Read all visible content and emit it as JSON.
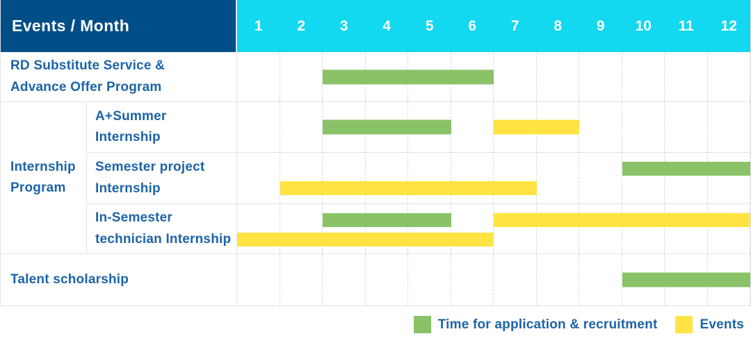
{
  "header": {
    "title": "Events / Month",
    "months": [
      "1",
      "2",
      "3",
      "4",
      "5",
      "6",
      "7",
      "8",
      "9",
      "10",
      "11",
      "12"
    ]
  },
  "colors": {
    "header_navy": "#004E88",
    "header_cyan": "#12D8F0",
    "recruitment_green": "#8AC367",
    "events_yellow": "#FFE443",
    "label_blue": "#1C64A8"
  },
  "group_label": [
    "Internship",
    "Program"
  ],
  "rows": [
    {
      "id": "rd-substitute-advance-offer",
      "label": [
        "RD Substitute Service &",
        "Advance Offer Program"
      ],
      "bars": [
        {
          "type": "recruitment",
          "start": 3,
          "end": 6,
          "line": 0
        }
      ]
    },
    {
      "id": "a-plus-summer-internship",
      "label": [
        "A+Summer",
        "Internship"
      ],
      "bars": [
        {
          "type": "recruitment",
          "start": 3,
          "end": 5,
          "line": 0
        },
        {
          "type": "events",
          "start": 7,
          "end": 8,
          "line": 0
        }
      ]
    },
    {
      "id": "semester-project-internship",
      "label": [
        "Semester project",
        "Internship"
      ],
      "bars": [
        {
          "type": "recruitment",
          "start": 10,
          "end": 12,
          "line": 1
        },
        {
          "type": "events",
          "start": 2,
          "end": 7,
          "line": 2
        }
      ]
    },
    {
      "id": "in-semester-technician-internship",
      "label": [
        "In-Semester",
        "technician Internship"
      ],
      "bars": [
        {
          "type": "recruitment",
          "start": 3,
          "end": 5,
          "line": 1
        },
        {
          "type": "events",
          "start": 7,
          "end": 12,
          "line": 1
        },
        {
          "type": "events",
          "start": 1,
          "end": 6,
          "line": 2
        }
      ]
    },
    {
      "id": "talent-scholarship",
      "label": [
        "Talent scholarship"
      ],
      "bars": [
        {
          "type": "recruitment",
          "start": 10,
          "end": 12,
          "line": 0
        }
      ]
    }
  ],
  "legend": [
    {
      "type": "recruitment",
      "label": "Time for application & recruitment"
    },
    {
      "type": "events",
      "label": "Events"
    }
  ],
  "chart_data": {
    "type": "gantt",
    "title": "Events / Month",
    "x_categories": [
      "1",
      "2",
      "3",
      "4",
      "5",
      "6",
      "7",
      "8",
      "9",
      "10",
      "11",
      "12"
    ],
    "x_axis_label": "Month",
    "legend_entries": [
      "Time for application & recruitment",
      "Events"
    ],
    "legend_position": "bottom-right",
    "grid": true,
    "tasks": [
      {
        "name": "RD Substitute Service & Advance Offer Program",
        "group": null,
        "application_recruitment_months": [
          [
            3,
            6
          ]
        ],
        "events_months": []
      },
      {
        "name": "A+Summer Internship",
        "group": "Internship Program",
        "application_recruitment_months": [
          [
            3,
            5
          ]
        ],
        "events_months": [
          [
            7,
            8
          ]
        ]
      },
      {
        "name": "Semester project Internship",
        "group": "Internship Program",
        "application_recruitment_months": [
          [
            10,
            12
          ]
        ],
        "events_months": [
          [
            2,
            7
          ]
        ]
      },
      {
        "name": "In-Semester technician Internship",
        "group": "Internship Program",
        "application_recruitment_months": [
          [
            3,
            5
          ]
        ],
        "events_months": [
          [
            7,
            12
          ],
          [
            1,
            6
          ]
        ]
      },
      {
        "name": "Talent scholarship",
        "group": null,
        "application_recruitment_months": [
          [
            10,
            12
          ]
        ],
        "events_months": []
      }
    ]
  }
}
